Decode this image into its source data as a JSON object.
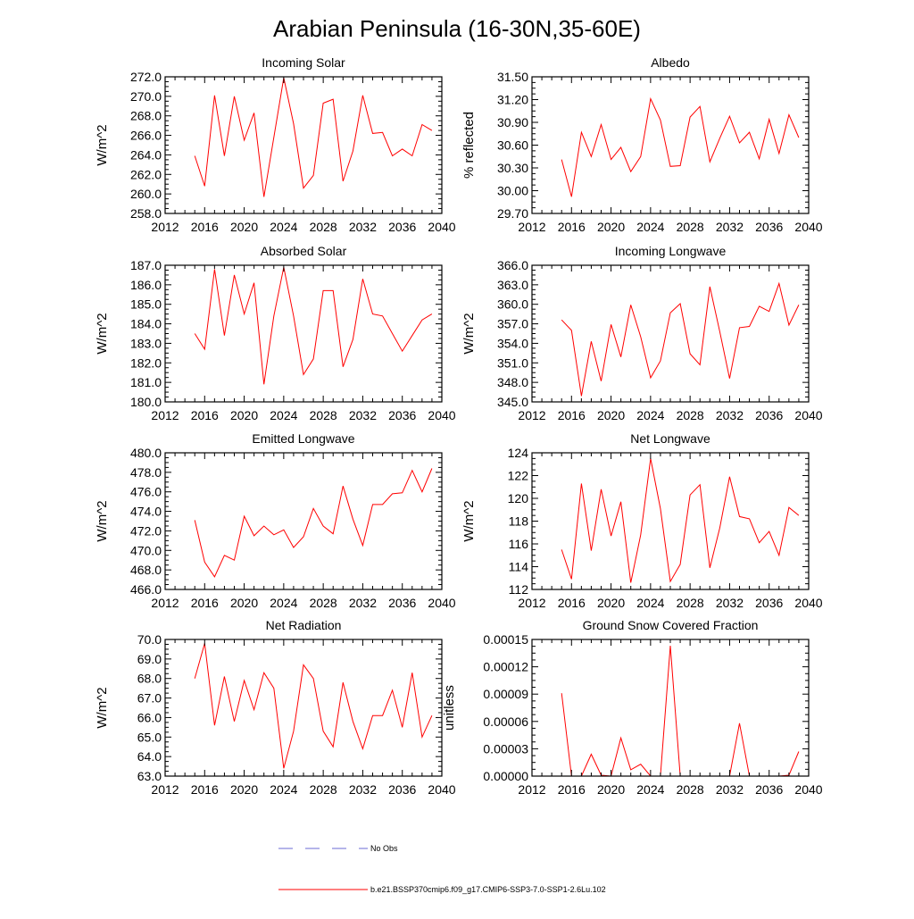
{
  "figure": {
    "title": "Arabian Peninsula (16-30N,35-60E)"
  },
  "colors": {
    "model_line": "#ff0000",
    "obs_line": "#6b6bd6",
    "axis": "#000000"
  },
  "legend": {
    "items": [
      {
        "label": "No Obs",
        "style": "dashed",
        "color": "#6b6bd6"
      },
      {
        "label": "b.e21.BSSP370cmip6.f09_g17.CMIP6-SSP3-7.0-SSP1-2.6Lu.102",
        "style": "solid",
        "color": "#ff0000"
      }
    ]
  },
  "chart_data": [
    {
      "type": "line",
      "title": "Incoming Solar",
      "ylabel": "W/m^2",
      "xlim": [
        2012,
        2040
      ],
      "ylim": [
        258,
        272
      ],
      "xticks": [
        2012,
        2016,
        2020,
        2024,
        2028,
        2032,
        2036,
        2040
      ],
      "xtick_labels": [
        "2012",
        "2016",
        "2020",
        "2024",
        "2028",
        "2032",
        "2036",
        "2040"
      ],
      "yticks": [
        258,
        260,
        262,
        264,
        266,
        268,
        270,
        272
      ],
      "ytick_labels": [
        "258.0",
        "260.0",
        "262.0",
        "264.0",
        "266.0",
        "268.0",
        "270.0",
        "272.0"
      ],
      "x": [
        2015,
        2016,
        2017,
        2018,
        2019,
        2020,
        2021,
        2022,
        2023,
        2024,
        2025,
        2026,
        2027,
        2028,
        2029,
        2030,
        2031,
        2032,
        2033,
        2034,
        2035,
        2036,
        2037,
        2038,
        2039
      ],
      "series": [
        {
          "values": [
            263.9,
            260.8,
            270.1,
            263.9,
            270.0,
            265.5,
            268.3,
            259.7,
            265.8,
            271.9,
            267.2,
            260.6,
            261.9,
            269.3,
            269.7,
            261.3,
            264.4,
            270.1,
            266.2,
            266.3,
            263.9,
            264.6,
            263.9,
            267.1,
            266.5
          ]
        }
      ]
    },
    {
      "type": "line",
      "title": "Albedo",
      "ylabel": "% reflected",
      "xlim": [
        2012,
        2040
      ],
      "ylim": [
        29.7,
        31.5
      ],
      "xticks": [
        2012,
        2016,
        2020,
        2024,
        2028,
        2032,
        2036,
        2040
      ],
      "xtick_labels": [
        "2012",
        "2016",
        "2020",
        "2024",
        "2028",
        "2032",
        "2036",
        "2040"
      ],
      "yticks": [
        29.7,
        30.0,
        30.3,
        30.6,
        30.9,
        31.2,
        31.5
      ],
      "ytick_labels": [
        "29.70",
        "30.00",
        "30.30",
        "30.60",
        "30.90",
        "31.20",
        "31.50"
      ],
      "x": [
        2015,
        2016,
        2017,
        2018,
        2019,
        2020,
        2021,
        2022,
        2023,
        2024,
        2025,
        2026,
        2027,
        2028,
        2029,
        2030,
        2031,
        2032,
        2033,
        2034,
        2035,
        2036,
        2037,
        2038,
        2039
      ],
      "series": [
        {
          "values": [
            30.41,
            29.92,
            30.77,
            30.45,
            30.87,
            30.41,
            30.57,
            30.25,
            30.45,
            31.21,
            30.93,
            30.32,
            30.33,
            30.97,
            31.11,
            30.38,
            30.69,
            30.98,
            30.63,
            30.77,
            30.42,
            30.94,
            30.49,
            31.0,
            30.7
          ]
        }
      ]
    },
    {
      "type": "line",
      "title": "Absorbed Solar",
      "ylabel": "W/m^2",
      "xlim": [
        2012,
        2040
      ],
      "ylim": [
        180,
        187
      ],
      "xticks": [
        2012,
        2016,
        2020,
        2024,
        2028,
        2032,
        2036,
        2040
      ],
      "xtick_labels": [
        "2012",
        "2016",
        "2020",
        "2024",
        "2028",
        "2032",
        "2036",
        "2040"
      ],
      "yticks": [
        180,
        181,
        182,
        183,
        184,
        185,
        186,
        187
      ],
      "ytick_labels": [
        "180.0",
        "181.0",
        "182.0",
        "183.0",
        "184.0",
        "185.0",
        "186.0",
        "187.0"
      ],
      "x": [
        2015,
        2016,
        2017,
        2018,
        2019,
        2020,
        2021,
        2022,
        2023,
        2024,
        2025,
        2026,
        2027,
        2028,
        2029,
        2030,
        2031,
        2032,
        2033,
        2034,
        2035,
        2036,
        2037,
        2038,
        2039
      ],
      "series": [
        {
          "values": [
            183.5,
            182.7,
            186.8,
            183.4,
            186.5,
            184.5,
            186.1,
            180.9,
            184.4,
            186.9,
            184.4,
            181.4,
            182.2,
            185.7,
            185.7,
            181.8,
            183.2,
            186.3,
            184.5,
            184.4,
            183.5,
            182.6,
            183.4,
            184.2,
            184.5
          ]
        }
      ]
    },
    {
      "type": "line",
      "title": "Incoming Longwave",
      "ylabel": "W/m^2",
      "xlim": [
        2012,
        2040
      ],
      "ylim": [
        345,
        366
      ],
      "xticks": [
        2012,
        2016,
        2020,
        2024,
        2028,
        2032,
        2036,
        2040
      ],
      "xtick_labels": [
        "2012",
        "2016",
        "2020",
        "2024",
        "2028",
        "2032",
        "2036",
        "2040"
      ],
      "yticks": [
        345,
        348,
        351,
        354,
        357,
        360,
        363,
        366
      ],
      "ytick_labels": [
        "345.0",
        "348.0",
        "351.0",
        "354.0",
        "357.0",
        "360.0",
        "363.0",
        "366.0"
      ],
      "x": [
        2015,
        2016,
        2017,
        2018,
        2019,
        2020,
        2021,
        2022,
        2023,
        2024,
        2025,
        2026,
        2027,
        2028,
        2029,
        2030,
        2031,
        2032,
        2033,
        2034,
        2035,
        2036,
        2037,
        2038,
        2039
      ],
      "series": [
        {
          "values": [
            357.6,
            356.0,
            345.9,
            354.3,
            348.2,
            356.9,
            351.9,
            359.9,
            355.0,
            348.7,
            351.3,
            358.7,
            360.1,
            352.4,
            350.7,
            362.7,
            355.8,
            348.6,
            356.4,
            356.6,
            359.7,
            358.9,
            363.2,
            356.8,
            359.9
          ]
        }
      ]
    },
    {
      "type": "line",
      "title": "Emitted Longwave",
      "ylabel": "W/m^2",
      "xlim": [
        2012,
        2040
      ],
      "ylim": [
        466,
        480
      ],
      "xticks": [
        2012,
        2016,
        2020,
        2024,
        2028,
        2032,
        2036,
        2040
      ],
      "xtick_labels": [
        "2012",
        "2016",
        "2020",
        "2024",
        "2028",
        "2032",
        "2036",
        "2040"
      ],
      "yticks": [
        466,
        468,
        470,
        472,
        474,
        476,
        478,
        480
      ],
      "ytick_labels": [
        "466.0",
        "468.0",
        "470.0",
        "472.0",
        "474.0",
        "476.0",
        "478.0",
        "480.0"
      ],
      "x": [
        2015,
        2016,
        2017,
        2018,
        2019,
        2020,
        2021,
        2022,
        2023,
        2024,
        2025,
        2026,
        2027,
        2028,
        2029,
        2030,
        2031,
        2032,
        2033,
        2034,
        2035,
        2036,
        2037,
        2038,
        2039
      ],
      "series": [
        {
          "values": [
            473.1,
            468.8,
            467.3,
            469.5,
            469.0,
            473.5,
            471.5,
            472.5,
            471.6,
            472.1,
            470.3,
            471.4,
            474.3,
            472.5,
            471.7,
            476.6,
            473.2,
            470.5,
            474.7,
            474.7,
            475.8,
            475.9,
            478.2,
            476.0,
            478.4
          ]
        }
      ]
    },
    {
      "type": "line",
      "title": "Net Longwave",
      "ylabel": "W/m^2",
      "xlim": [
        2012,
        2040
      ],
      "ylim": [
        112,
        124
      ],
      "xticks": [
        2012,
        2016,
        2020,
        2024,
        2028,
        2032,
        2036,
        2040
      ],
      "xtick_labels": [
        "2012",
        "2016",
        "2020",
        "2024",
        "2028",
        "2032",
        "2036",
        "2040"
      ],
      "yticks": [
        112,
        114,
        116,
        118,
        120,
        122,
        124
      ],
      "ytick_labels": [
        "112",
        "114",
        "116",
        "118",
        "120",
        "122",
        "124"
      ],
      "x": [
        2015,
        2016,
        2017,
        2018,
        2019,
        2020,
        2021,
        2022,
        2023,
        2024,
        2025,
        2026,
        2027,
        2028,
        2029,
        2030,
        2031,
        2032,
        2033,
        2034,
        2035,
        2036,
        2037,
        2038,
        2039
      ],
      "series": [
        {
          "values": [
            115.5,
            112.9,
            121.3,
            115.4,
            120.8,
            116.7,
            119.7,
            112.6,
            116.8,
            123.5,
            119.1,
            112.7,
            114.2,
            120.3,
            121.2,
            113.9,
            117.4,
            121.9,
            118.4,
            118.2,
            116.1,
            117.1,
            115.0,
            119.2,
            118.5
          ]
        }
      ]
    },
    {
      "type": "line",
      "title": "Net Radiation",
      "ylabel": "W/m^2",
      "xlim": [
        2012,
        2040
      ],
      "ylim": [
        63,
        70
      ],
      "xticks": [
        2012,
        2016,
        2020,
        2024,
        2028,
        2032,
        2036,
        2040
      ],
      "xtick_labels": [
        "2012",
        "2016",
        "2020",
        "2024",
        "2028",
        "2032",
        "2036",
        "2040"
      ],
      "yticks": [
        63,
        64,
        65,
        66,
        67,
        68,
        69,
        70
      ],
      "ytick_labels": [
        "63.0",
        "64.0",
        "65.0",
        "66.0",
        "67.0",
        "68.0",
        "69.0",
        "70.0"
      ],
      "x": [
        2015,
        2016,
        2017,
        2018,
        2019,
        2020,
        2021,
        2022,
        2023,
        2024,
        2025,
        2026,
        2027,
        2028,
        2029,
        2030,
        2031,
        2032,
        2033,
        2034,
        2035,
        2036,
        2037,
        2038,
        2039
      ],
      "series": [
        {
          "values": [
            68.0,
            69.8,
            65.6,
            68.1,
            65.8,
            67.9,
            66.4,
            68.3,
            67.5,
            63.4,
            65.3,
            68.7,
            68.0,
            65.3,
            64.5,
            67.8,
            65.8,
            64.4,
            66.1,
            66.1,
            67.4,
            65.5,
            68.3,
            65.0,
            66.1
          ]
        }
      ]
    },
    {
      "type": "line",
      "title": "Ground Snow Covered Fraction",
      "ylabel": "unitless",
      "xlim": [
        2012,
        2040
      ],
      "ylim": [
        0,
        0.00015
      ],
      "xticks": [
        2012,
        2016,
        2020,
        2024,
        2028,
        2032,
        2036,
        2040
      ],
      "xtick_labels": [
        "2012",
        "2016",
        "2020",
        "2024",
        "2028",
        "2032",
        "2036",
        "2040"
      ],
      "yticks": [
        0,
        3e-05,
        6e-05,
        9e-05,
        0.00012,
        0.00015
      ],
      "ytick_labels": [
        "0.00000",
        "0.00003",
        "0.00006",
        "0.00009",
        "0.00012",
        "0.00015"
      ],
      "x": [
        2015,
        2016,
        2017,
        2018,
        2019,
        2020,
        2021,
        2022,
        2023,
        2024,
        2025,
        2026,
        2027,
        2028,
        2029,
        2030,
        2031,
        2032,
        2033,
        2034,
        2035,
        2036,
        2037,
        2038,
        2039
      ],
      "series": [
        {
          "values": [
            9.1e-05,
            0.0,
            0.0,
            2.4e-05,
            1e-06,
            0.0,
            4.2e-05,
            7e-06,
            1.3e-05,
            0.0,
            0.0,
            0.000143,
            0.0,
            0.0,
            0.0,
            0.0,
            0.0,
            0.0,
            5.8e-05,
            0.0,
            0.0,
            0.0,
            0.0,
            1e-06,
            2.7e-05
          ]
        }
      ]
    }
  ]
}
